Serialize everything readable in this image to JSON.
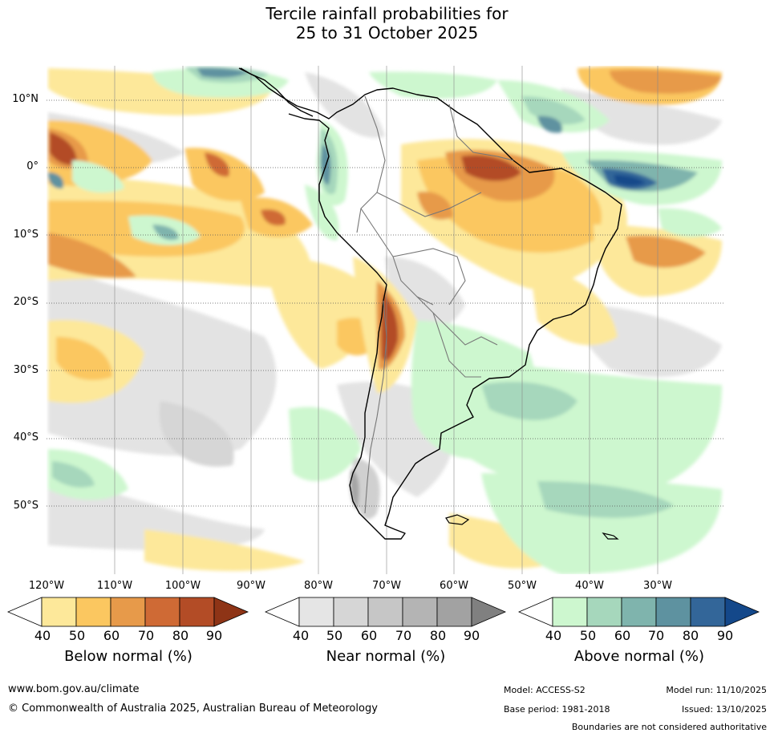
{
  "title": {
    "line1": "Tercile rainfall probabilities for",
    "line2": "25 to 31 October 2025"
  },
  "map": {
    "lat_labels": [
      "10°N",
      "0°",
      "10°S",
      "20°S",
      "30°S",
      "40°S",
      "50°S"
    ],
    "lon_labels": [
      "120°W",
      "110°W",
      "100°W",
      "90°W",
      "80°W",
      "70°W",
      "60°W",
      "50°W",
      "40°W",
      "30°W"
    ]
  },
  "colorbars": {
    "ticks": [
      "40",
      "50",
      "60",
      "70",
      "80",
      "90"
    ],
    "below": {
      "title": "Below normal (%)",
      "colors": [
        "#ffffff",
        "#fde89a",
        "#fbc760",
        "#e79a4a",
        "#cf6a35",
        "#b34c26",
        "#8e3416"
      ]
    },
    "near": {
      "title": "Near normal (%)",
      "colors": [
        "#ffffff",
        "#e5e5e5",
        "#d6d6d6",
        "#c6c6c6",
        "#b4b4b4",
        "#a2a2a2",
        "#808080"
      ]
    },
    "above": {
      "title": "Above normal (%)",
      "colors": [
        "#ffffff",
        "#cdf7cf",
        "#a6d7bc",
        "#7fb4ad",
        "#5e92a0",
        "#336699",
        "#14488a"
      ]
    }
  },
  "footer": {
    "url": "www.bom.gov.au/climate",
    "copyright": "© Commonwealth of Australia 2025, Australian Bureau of Meteorology",
    "model": "Model: ACCESS-S2",
    "model_run": "Model run: 11/10/2025",
    "base_period": "Base period: 1981-2018",
    "issued": "Issued: 13/10/2025",
    "disclaimer": "Boundaries are not considered authoritative"
  }
}
